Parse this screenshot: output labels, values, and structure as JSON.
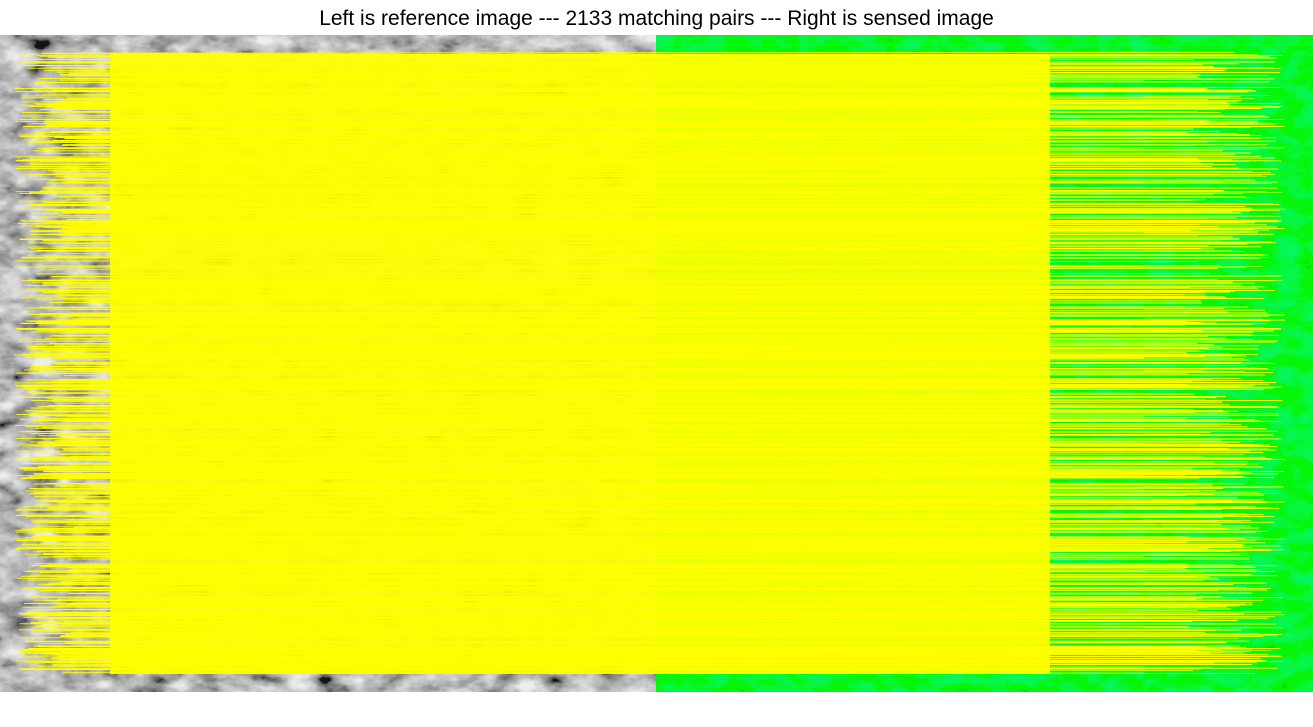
{
  "figure": {
    "title": "Left is reference image --- 2133 matching pairs --- Right is sensed image",
    "match_count": 2133,
    "left_image": {
      "kind": "reference",
      "tone": "grayscale satellite terrain"
    },
    "right_image": {
      "kind": "sensed",
      "tone": "green-tinted terrain"
    }
  },
  "colors": {
    "match_line": "#ffff00",
    "left_base": "#8a8a8a",
    "left_dark": "#1e1e1e",
    "left_light": "#d8d8d8",
    "right_base": "#23d33a",
    "right_dark": "#0a4a12",
    "right_light": "#55f06a",
    "background": "#ffffff"
  }
}
